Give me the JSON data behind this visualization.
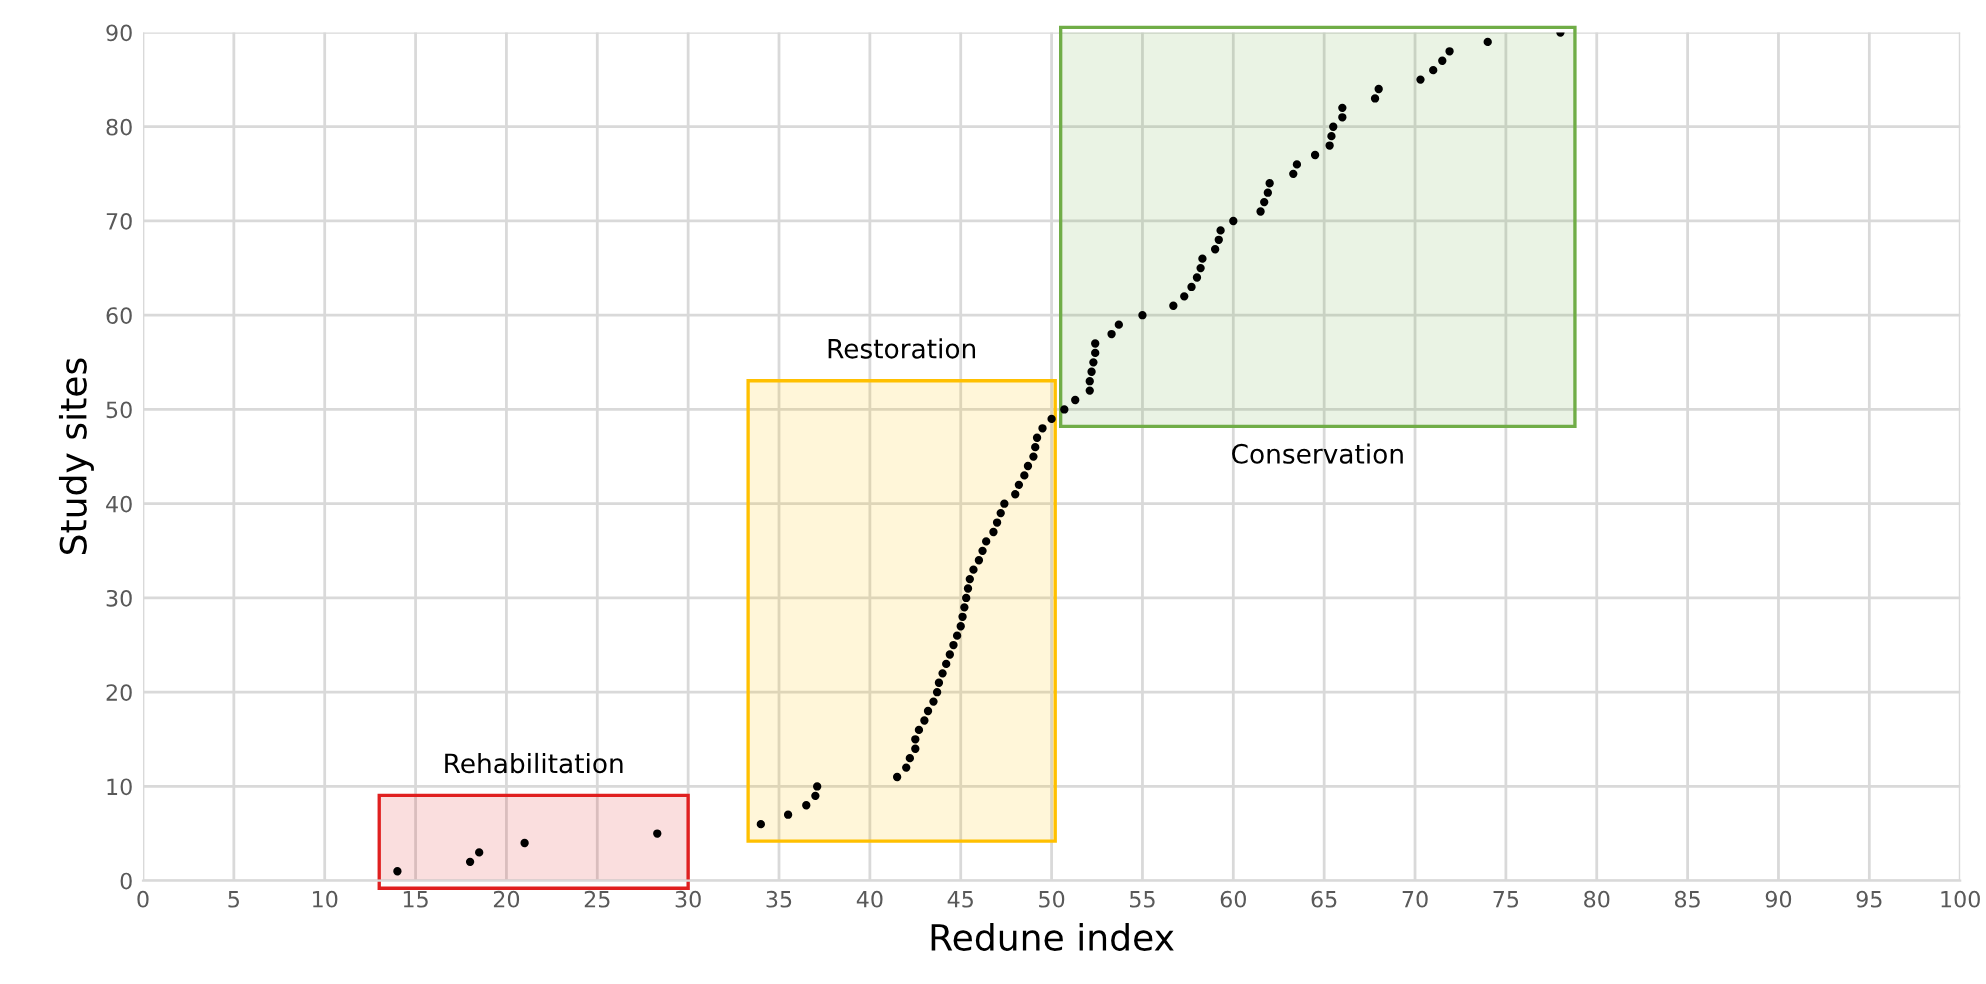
{
  "chart_data": {
    "type": "scatter",
    "xlabel": "Redune index",
    "ylabel": "Study sites",
    "x": [
      14,
      18,
      18.5,
      21,
      28.3,
      34,
      35.5,
      36.5,
      37,
      37.1,
      41.5,
      42,
      42.2,
      42.5,
      42.5,
      42.7,
      43,
      43.2,
      43.5,
      43.7,
      43.8,
      44,
      44.2,
      44.4,
      44.6,
      44.8,
      45,
      45.1,
      45.2,
      45.3,
      45.4,
      45.5,
      45.7,
      46,
      46.2,
      46.4,
      46.8,
      47,
      47.2,
      47.4,
      48,
      48.2,
      48.5,
      48.7,
      49,
      49.1,
      49.2,
      49.5,
      50,
      50.7,
      51.3,
      52.1,
      52.1,
      52.2,
      52.3,
      52.4,
      52.4,
      53.3,
      53.7,
      55,
      56.7,
      57.3,
      57.7,
      58,
      58.2,
      58.3,
      59,
      59.2,
      59.3,
      60,
      61.5,
      61.7,
      61.9,
      62,
      63.3,
      63.5,
      64.5,
      65.3,
      65.4,
      65.5,
      66,
      66,
      67.8,
      68,
      70.3,
      71,
      71.5,
      71.9,
      74,
      78
    ],
    "values": [
      1,
      2,
      3,
      4,
      5,
      6,
      7,
      8,
      9,
      10,
      11,
      12,
      13,
      14,
      15,
      16,
      17,
      18,
      19,
      20,
      21,
      22,
      23,
      24,
      25,
      26,
      27,
      28,
      29,
      30,
      31,
      32,
      33,
      34,
      35,
      36,
      37,
      38,
      39,
      40,
      41,
      42,
      43,
      44,
      45,
      46,
      47,
      48,
      49,
      50,
      51,
      52,
      53,
      54,
      55,
      56,
      57,
      58,
      59,
      60,
      61,
      62,
      63,
      64,
      65,
      66,
      67,
      68,
      69,
      70,
      71,
      72,
      73,
      74,
      75,
      76,
      77,
      78,
      79,
      80,
      81,
      82,
      83,
      84,
      85,
      86,
      87,
      88,
      89,
      90
    ],
    "color": "#000000",
    "marker": "circle",
    "xlim": [
      0,
      100
    ],
    "xticks": [
      0,
      5,
      10,
      15,
      20,
      25,
      30,
      35,
      40,
      45,
      50,
      55,
      60,
      65,
      70,
      75,
      80,
      85,
      90,
      95,
      100
    ],
    "ylim": [
      0,
      90
    ],
    "yticks": [
      0,
      10,
      20,
      30,
      40,
      50,
      60,
      70,
      80,
      90
    ],
    "grid": true,
    "bands": [
      {
        "axis": "x",
        "from": 13,
        "to": 30,
        "label": "Rehabilitation",
        "color": "#e02020"
      },
      {
        "axis": "x",
        "from": 33.3,
        "to": 50.2,
        "label": "Restoration",
        "color": "#ffc000"
      },
      {
        "axis": "x",
        "from": 50.5,
        "to": 78.8,
        "label": "Conservation",
        "color": "#70ad47"
      }
    ]
  }
}
